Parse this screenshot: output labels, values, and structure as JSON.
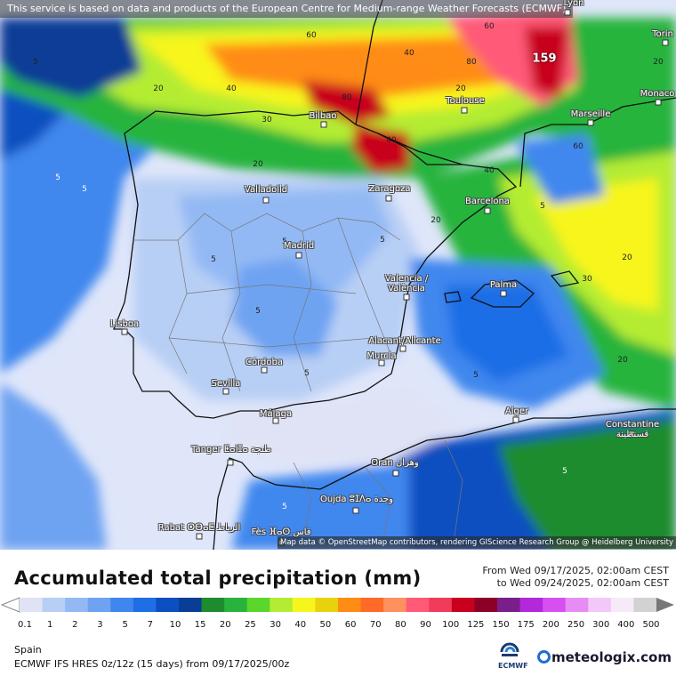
{
  "map": {
    "disclaimer": "This service is based on data and products of the European Centre for Medium-range Weather Forecasts (ECMWF)",
    "attribution": "Map data © OpenStreetMap contributors, rendering GIScience Research Group @ Heidelberg University",
    "max_value": "159",
    "cities": [
      {
        "id": "lyon",
        "label": "Lyon"
      },
      {
        "id": "torino",
        "label": "Torin"
      },
      {
        "id": "monaco",
        "label": "Monaco"
      },
      {
        "id": "bilbao",
        "label": "Bilbao"
      },
      {
        "id": "toulouse",
        "label": "Toulouse"
      },
      {
        "id": "marseille",
        "label": "Marseille"
      },
      {
        "id": "valladolid",
        "label": "Valladolid"
      },
      {
        "id": "zaragoza",
        "label": "Zaragoza"
      },
      {
        "id": "barcelona",
        "label": "Barcelona"
      },
      {
        "id": "madrid",
        "label": "Madrid"
      },
      {
        "id": "valencia",
        "label": "Valencia / València"
      },
      {
        "id": "palma",
        "label": "Palma"
      },
      {
        "id": "lisboa",
        "label": "Lisboa"
      },
      {
        "id": "alacant",
        "label": "Alacant/Alicante"
      },
      {
        "id": "murcia",
        "label": "Murcia"
      },
      {
        "id": "cordoba",
        "label": "Córdoba"
      },
      {
        "id": "sevilla",
        "label": "Sevilla"
      },
      {
        "id": "malaga",
        "label": "Málaga"
      },
      {
        "id": "alger",
        "label": "Alger"
      },
      {
        "id": "constantine",
        "label": "Constantine قسنطينة"
      },
      {
        "id": "tanger",
        "label": "Tanger ⵟⴰⵏⵊⴰ طنجة"
      },
      {
        "id": "oran",
        "label": "Oran وهران"
      },
      {
        "id": "oujda",
        "label": "Oujda ⵓⵊⴷⴰ وجدة"
      },
      {
        "id": "rabat",
        "label": "Rabat ⵔⴱⴰⵟ الرباط"
      },
      {
        "id": "fes",
        "label": "Fès ⴼⴰⵙ فاس"
      }
    ]
  },
  "panel": {
    "title": "Accumulated total precipitation (mm)",
    "from": "From Wed 09/17/2025, 02:00am CEST",
    "to": "to Wed 09/24/2025, 02:00am CEST",
    "region": "Spain",
    "model": "ECMWF IFS HRES 0z/12z (15 days) from  09/17/2025/00z",
    "ecmwf_label": "ECMWF",
    "brand": "meteologix.com"
  },
  "legend": {
    "labels": [
      "0.1",
      "1",
      "2",
      "3",
      "5",
      "7",
      "10",
      "15",
      "20",
      "25",
      "30",
      "40",
      "50",
      "60",
      "70",
      "80",
      "90",
      "100",
      "125",
      "150",
      "175",
      "200",
      "250",
      "300",
      "400",
      "500"
    ],
    "colors": [
      "#dfe3f5",
      "#b8cff5",
      "#93b9f4",
      "#6ea3f2",
      "#3f87ee",
      "#1e6ee6",
      "#0c4fc0",
      "#0a3d96",
      "#1e8c2e",
      "#28b43c",
      "#5bd62c",
      "#b4ec33",
      "#f7f51e",
      "#e8d20e",
      "#ff8c14",
      "#ff6a28",
      "#ff9060",
      "#ff5a78",
      "#f03c5a",
      "#c8001e",
      "#8c0028",
      "#7a1e8c",
      "#b428dc",
      "#d650f0",
      "#e88cf5",
      "#f2c8f8",
      "#f6eaf8",
      "#d2d2d2"
    ]
  }
}
